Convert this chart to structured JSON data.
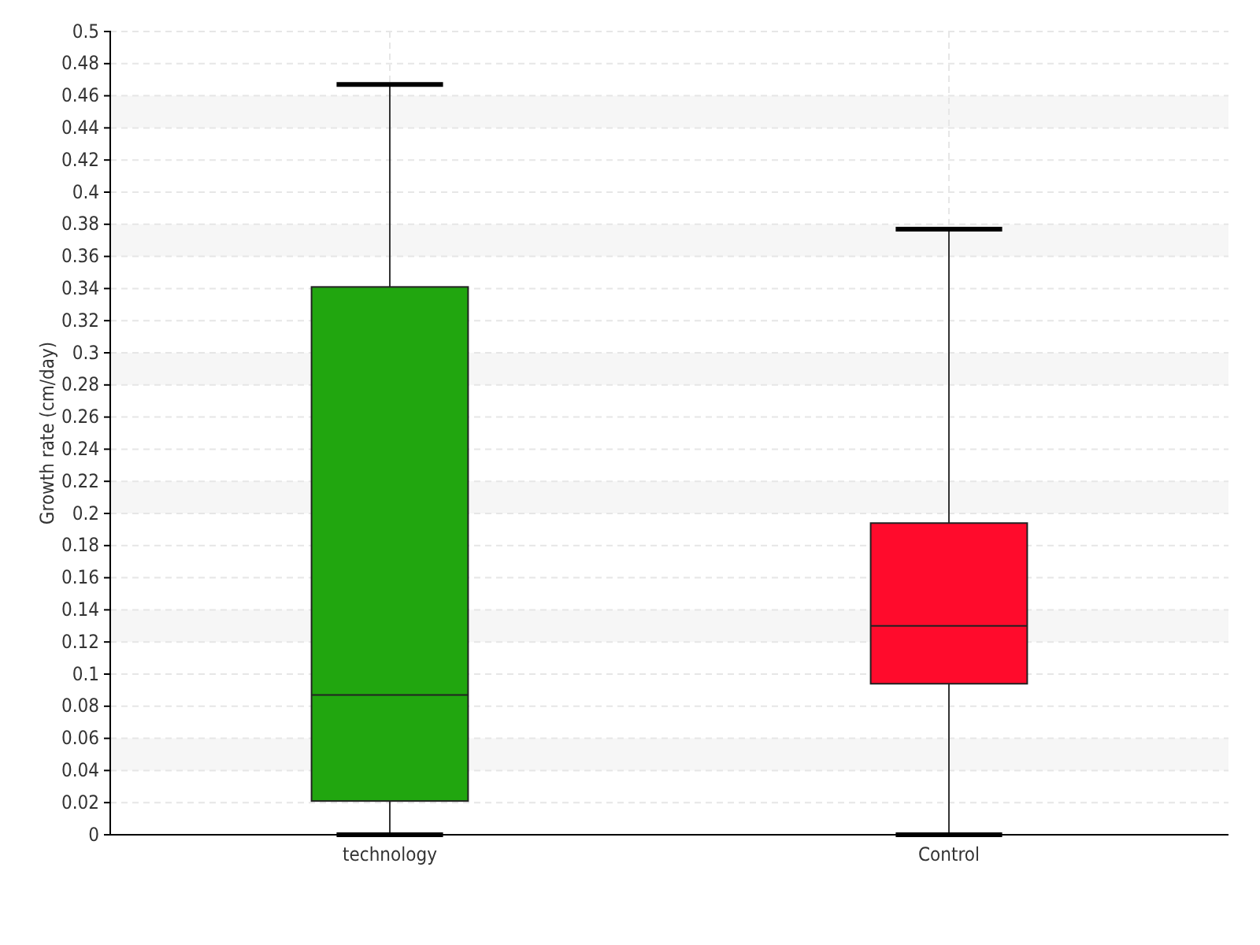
{
  "chart_data": {
    "type": "box",
    "ylabel": "Growth rate (cm/day)",
    "categories": [
      "technology",
      "Control"
    ],
    "boxes": [
      {
        "low": 0,
        "q1": 0.021,
        "median": 0.087,
        "q3": 0.341,
        "high": 0.467
      },
      {
        "low": 0,
        "q1": 0.094,
        "median": 0.13,
        "q3": 0.194,
        "high": 0.377
      }
    ],
    "colors": [
      "#21a60f",
      "#ff0b2c"
    ],
    "ylim": [
      0,
      0.5
    ],
    "yticks": [
      0,
      0.02,
      0.04,
      0.06,
      0.08,
      0.1,
      0.12,
      0.14,
      0.16,
      0.18,
      0.2,
      0.22,
      0.24,
      0.26,
      0.28,
      0.3,
      0.32,
      0.34,
      0.36,
      0.38,
      0.4,
      0.42,
      0.44,
      0.46,
      0.48,
      0.5
    ],
    "grid": true
  }
}
